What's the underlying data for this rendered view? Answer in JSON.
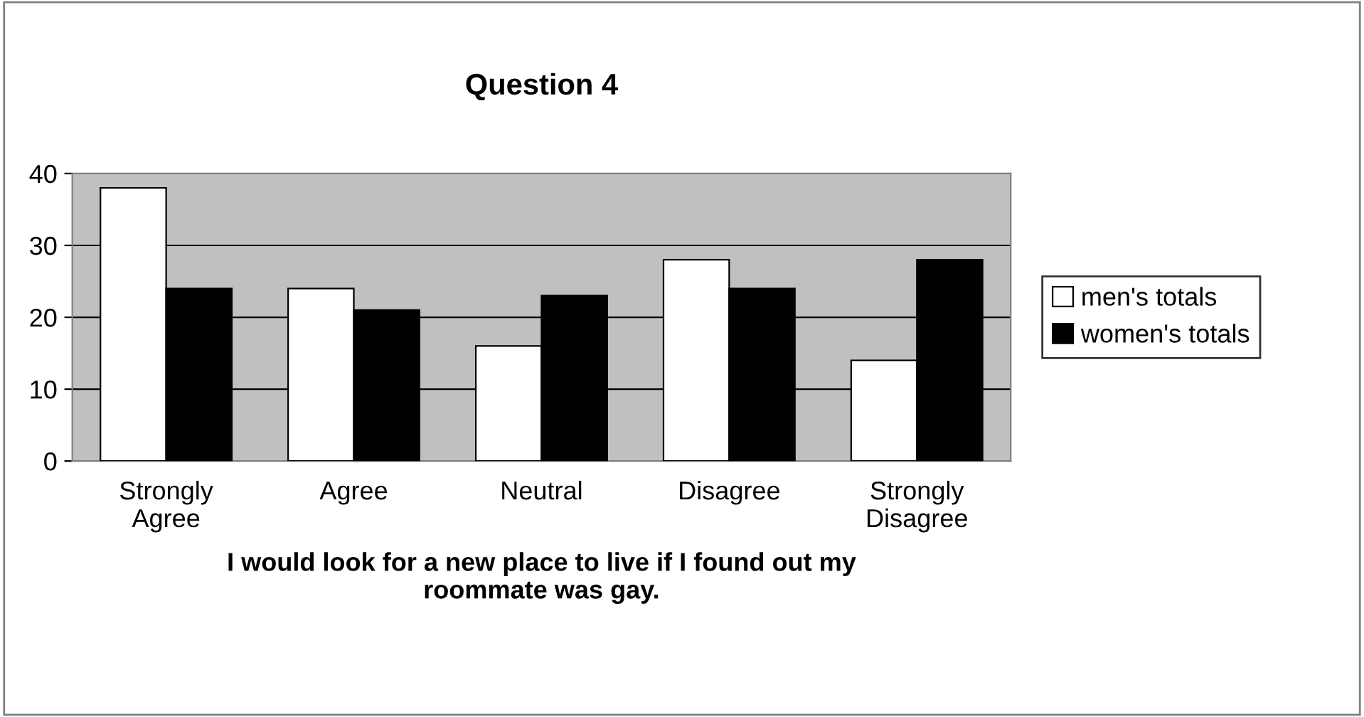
{
  "chart_data": {
    "type": "bar",
    "title": "Question 4",
    "xlabel": "I would look for a new place to live if I found out my\nroommate was gay.",
    "categories": [
      "Strongly\nAgree",
      "Agree",
      "Neutral",
      "Disagree",
      "Strongly\nDisagree"
    ],
    "series": [
      {
        "name": "men's totals",
        "color": "#ffffff",
        "values": [
          38,
          24,
          16,
          28,
          14
        ]
      },
      {
        "name": "women's totals",
        "color": "#000000",
        "values": [
          24,
          21,
          23,
          24,
          28
        ]
      }
    ],
    "ylim": [
      0,
      40
    ],
    "yticks": [
      0,
      10,
      20,
      30,
      40
    ],
    "grid": "y",
    "legend": "right"
  }
}
